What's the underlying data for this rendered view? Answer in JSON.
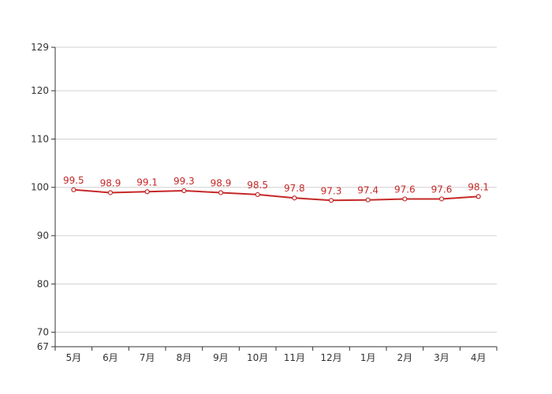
{
  "chart_data": {
    "type": "line",
    "categories": [
      "5月",
      "6月",
      "7月",
      "8月",
      "9月",
      "10月",
      "11月",
      "12月",
      "1月",
      "2月",
      "3月",
      "4月"
    ],
    "series": [
      {
        "values": [
          99.5,
          98.9,
          99.1,
          99.3,
          98.9,
          98.5,
          97.8,
          97.3,
          97.4,
          97.6,
          97.6,
          98.1
        ],
        "color": "#c62828",
        "data_labels": true
      }
    ],
    "ylim": [
      67,
      129
    ],
    "yticks": [
      67,
      70,
      80,
      90,
      100,
      110,
      120,
      129
    ],
    "grid": true,
    "legend": "none",
    "title": "",
    "xlabel": "",
    "ylabel": ""
  }
}
